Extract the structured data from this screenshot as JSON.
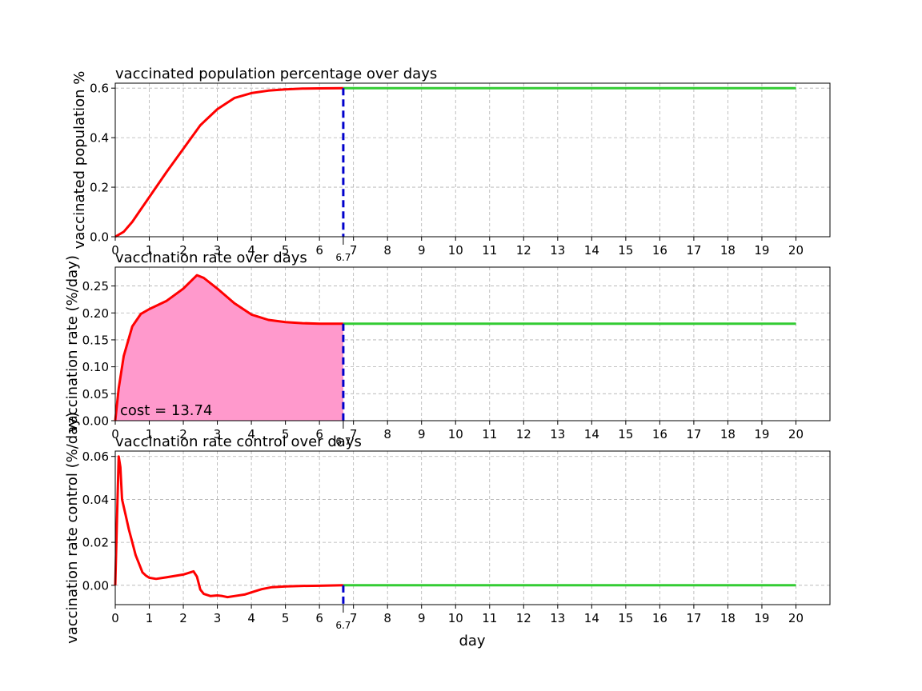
{
  "chart_data": [
    {
      "type": "line",
      "title": "vaccinated population percentage over days",
      "xlabel": "",
      "ylabel": "vaccinated population %",
      "xlim": [
        0,
        21
      ],
      "ylim": [
        0,
        0.62
      ],
      "x_ticks": [
        "0",
        "1",
        "2",
        "3",
        "4",
        "5",
        "6",
        "7",
        "8",
        "9",
        "10",
        "11",
        "12",
        "13",
        "14",
        "15",
        "16",
        "17",
        "18",
        "19",
        "20"
      ],
      "y_ticks": [
        {
          "v": 0,
          "label": "0.0"
        },
        {
          "v": 0.2,
          "label": "0.2"
        },
        {
          "v": 0.4,
          "label": "0.4"
        },
        {
          "v": 0.6,
          "label": "0.6"
        }
      ],
      "grid": true,
      "marker": {
        "x": 6.7,
        "label": "6.7"
      },
      "series": [
        {
          "color": "#ff0000",
          "points": [
            [
              0,
              0
            ],
            [
              0.25,
              0.02
            ],
            [
              0.5,
              0.06
            ],
            [
              0.75,
              0.11
            ],
            [
              1,
              0.16
            ],
            [
              1.5,
              0.26
            ],
            [
              2,
              0.355
            ],
            [
              2.5,
              0.45
            ],
            [
              3,
              0.515
            ],
            [
              3.5,
              0.56
            ],
            [
              4,
              0.58
            ],
            [
              4.5,
              0.59
            ],
            [
              5,
              0.595
            ],
            [
              5.5,
              0.598
            ],
            [
              6,
              0.599
            ],
            [
              6.7,
              0.6
            ]
          ]
        },
        {
          "color": "#33cc33",
          "points": [
            [
              6.7,
              0.6
            ],
            [
              20,
              0.6
            ]
          ]
        }
      ]
    },
    {
      "type": "area",
      "title": "vaccination rate over days",
      "xlabel": "",
      "ylabel": "vaccination rate (%/day)",
      "xlim": [
        0,
        21
      ],
      "ylim": [
        0,
        0.285
      ],
      "x_ticks": [
        "0",
        "1",
        "2",
        "3",
        "4",
        "5",
        "6",
        "7",
        "8",
        "9",
        "10",
        "11",
        "12",
        "13",
        "14",
        "15",
        "16",
        "17",
        "18",
        "19",
        "20"
      ],
      "y_ticks": [
        {
          "v": 0,
          "label": "0.00"
        },
        {
          "v": 0.05,
          "label": "0.05"
        },
        {
          "v": 0.1,
          "label": "0.10"
        },
        {
          "v": 0.15,
          "label": "0.15"
        },
        {
          "v": 0.2,
          "label": "0.20"
        },
        {
          "v": 0.25,
          "label": "0.25"
        }
      ],
      "grid": true,
      "marker": {
        "x": 6.7,
        "label": "6.7"
      },
      "annotation": "cost = 13.74",
      "fill_color": "#ff99cc",
      "series": [
        {
          "color": "#ff0000",
          "points": [
            [
              0,
              0
            ],
            [
              0.1,
              0.06
            ],
            [
              0.25,
              0.12
            ],
            [
              0.5,
              0.175
            ],
            [
              0.75,
              0.198
            ],
            [
              1,
              0.207
            ],
            [
              1.5,
              0.222
            ],
            [
              2,
              0.245
            ],
            [
              2.4,
              0.27
            ],
            [
              2.6,
              0.265
            ],
            [
              3,
              0.245
            ],
            [
              3.5,
              0.218
            ],
            [
              4,
              0.197
            ],
            [
              4.5,
              0.187
            ],
            [
              5,
              0.183
            ],
            [
              5.5,
              0.181
            ],
            [
              6,
              0.18
            ],
            [
              6.7,
              0.18
            ]
          ]
        },
        {
          "color": "#33cc33",
          "points": [
            [
              6.7,
              0.18
            ],
            [
              20,
              0.18
            ]
          ]
        }
      ]
    },
    {
      "type": "line",
      "title": "vaccination rate control over days",
      "xlabel": "day",
      "ylabel": "vaccination rate control (%/day)",
      "xlim": [
        0,
        21
      ],
      "ylim": [
        -0.009,
        0.0625
      ],
      "x_ticks": [
        "0",
        "1",
        "2",
        "3",
        "4",
        "5",
        "6",
        "7",
        "8",
        "9",
        "10",
        "11",
        "12",
        "13",
        "14",
        "15",
        "16",
        "17",
        "18",
        "19",
        "20"
      ],
      "y_ticks": [
        {
          "v": 0,
          "label": "0.00"
        },
        {
          "v": 0.02,
          "label": "0.02"
        },
        {
          "v": 0.04,
          "label": "0.04"
        },
        {
          "v": 0.06,
          "label": "0.06"
        }
      ],
      "grid": true,
      "marker": {
        "x": 6.7,
        "label": "6.7"
      },
      "series": [
        {
          "color": "#ff0000",
          "points": [
            [
              0,
              0
            ],
            [
              0.05,
              0.03
            ],
            [
              0.1,
              0.06
            ],
            [
              0.15,
              0.055
            ],
            [
              0.2,
              0.04
            ],
            [
              0.3,
              0.033
            ],
            [
              0.4,
              0.026
            ],
            [
              0.5,
              0.02
            ],
            [
              0.6,
              0.014
            ],
            [
              0.7,
              0.01
            ],
            [
              0.8,
              0.006
            ],
            [
              0.9,
              0.0045
            ],
            [
              1,
              0.0035
            ],
            [
              1.2,
              0.003
            ],
            [
              1.5,
              0.0037
            ],
            [
              2,
              0.005
            ],
            [
              2.3,
              0.0065
            ],
            [
              2.4,
              0.004
            ],
            [
              2.5,
              -0.002
            ],
            [
              2.6,
              -0.004
            ],
            [
              2.8,
              -0.005
            ],
            [
              3,
              -0.0047
            ],
            [
              3.15,
              -0.005
            ],
            [
              3.3,
              -0.0055
            ],
            [
              3.5,
              -0.005
            ],
            [
              3.8,
              -0.0043
            ],
            [
              4,
              -0.0033
            ],
            [
              4.3,
              -0.0018
            ],
            [
              4.6,
              -0.0009
            ],
            [
              5,
              -0.0005
            ],
            [
              5.5,
              -0.0003
            ],
            [
              6,
              -0.0002
            ],
            [
              6.7,
              0
            ]
          ]
        },
        {
          "color": "#33cc33",
          "points": [
            [
              6.7,
              0
            ],
            [
              20,
              0
            ]
          ]
        }
      ]
    }
  ],
  "colors": {
    "grid": "#b0b0b0",
    "marker": "#0000cc"
  }
}
